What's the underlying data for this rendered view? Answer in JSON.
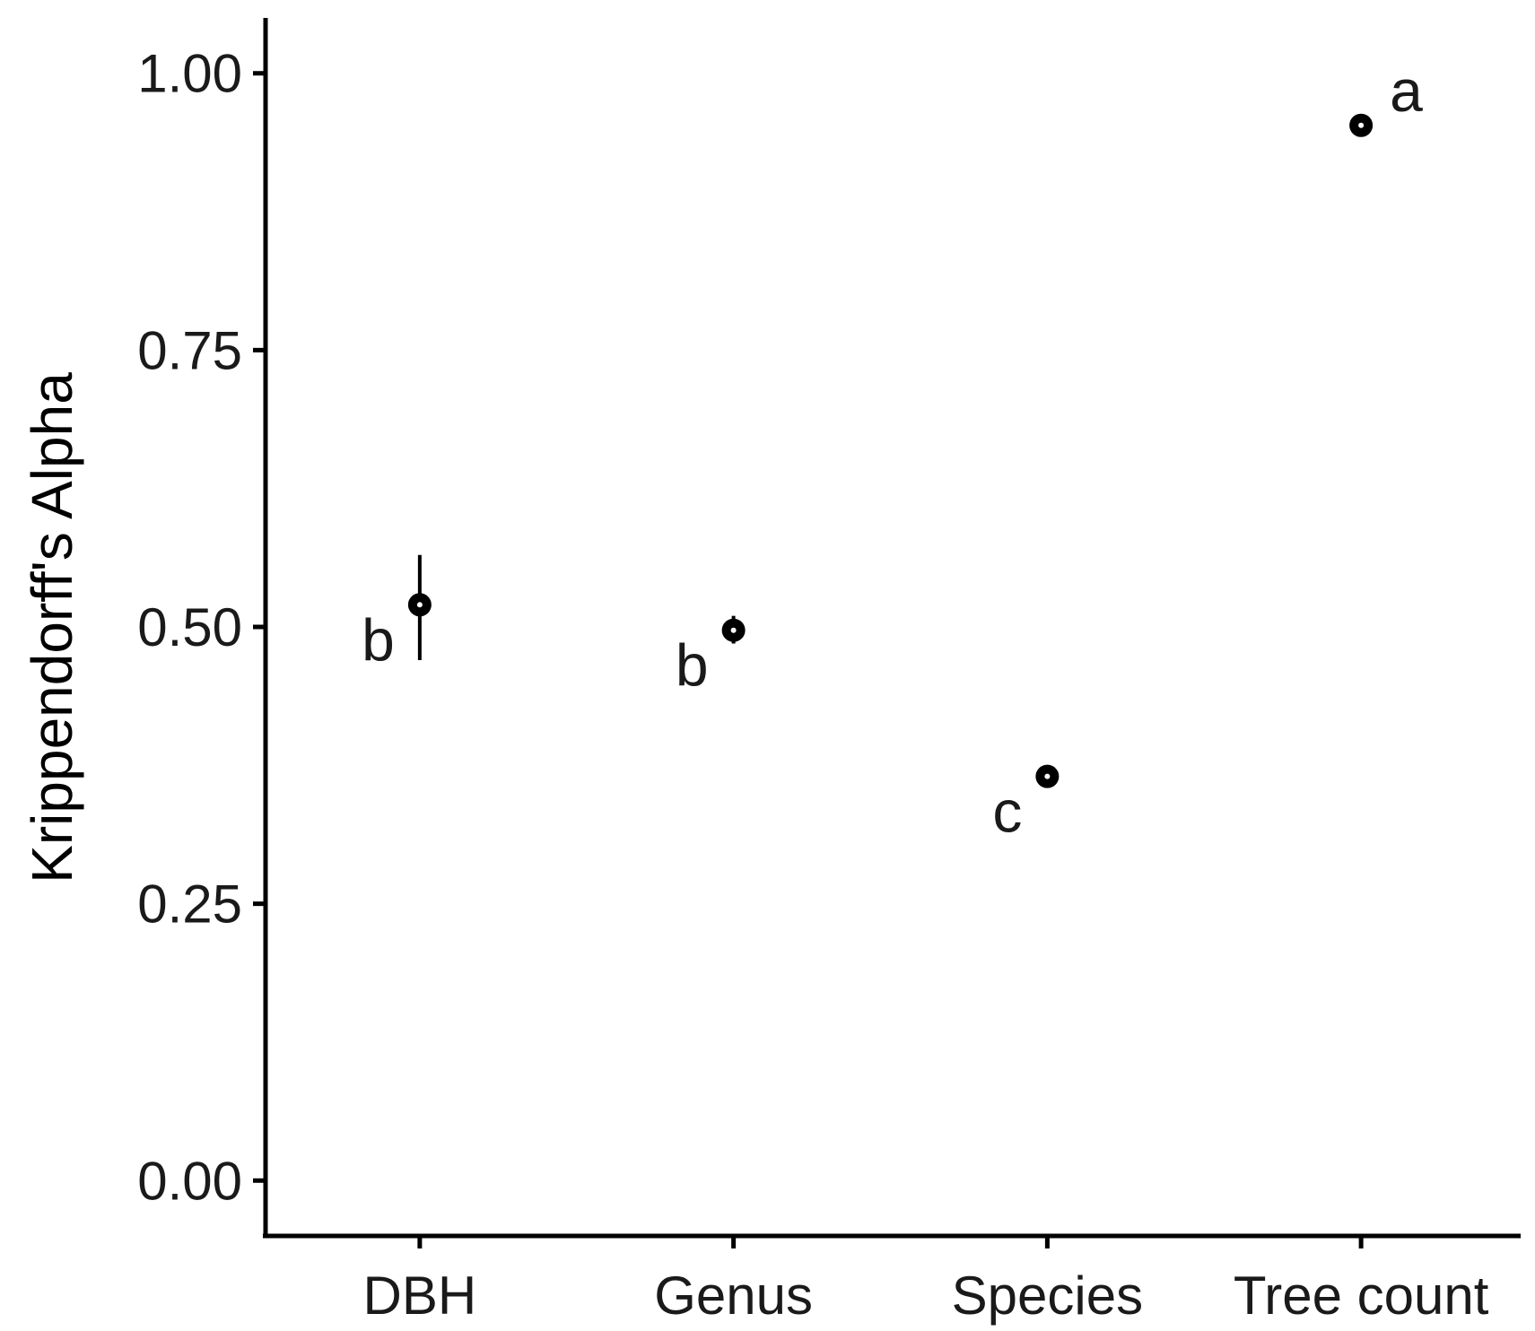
{
  "chart_data": {
    "type": "scatter",
    "title": "",
    "xlabel": "",
    "ylabel": "Krippendorff's Alpha",
    "categories": [
      "DBH",
      "Genus",
      "Species",
      "Tree count"
    ],
    "ylim": [
      -0.05,
      1.05
    ],
    "yticks": [
      "0.00",
      "0.25",
      "0.50",
      "0.75",
      "1.00"
    ],
    "grid": false,
    "legend": "none",
    "points": [
      {
        "category": "DBH",
        "value": 0.52,
        "lower": 0.47,
        "upper": 0.565,
        "letter": "b"
      },
      {
        "category": "Genus",
        "value": 0.497,
        "lower": 0.485,
        "upper": 0.51,
        "letter": "b"
      },
      {
        "category": "Species",
        "value": 0.365,
        "lower": 0.36,
        "upper": 0.37,
        "letter": "c"
      },
      {
        "category": "Tree count",
        "value": 0.953,
        "lower": 0.95,
        "upper": 0.957,
        "letter": "a"
      }
    ],
    "colors": {
      "point": "#000000",
      "text": "#1a1a1a",
      "axis": "#000000"
    }
  }
}
